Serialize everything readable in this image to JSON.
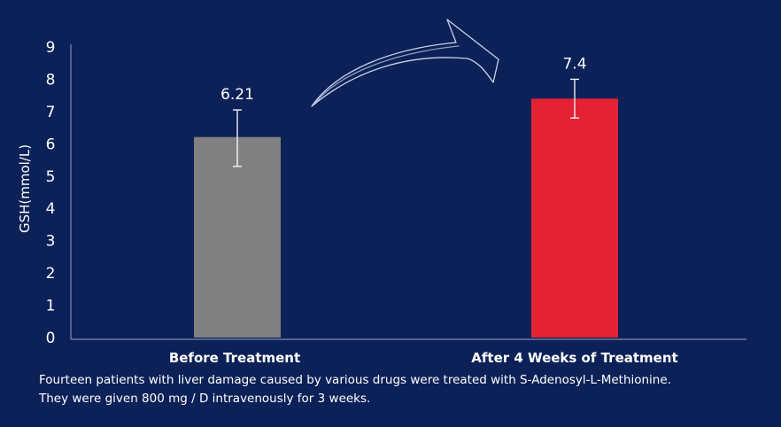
{
  "chart_data": {
    "type": "bar",
    "categories": [
      "Before Treatment",
      "After 4 Weeks of Treatment"
    ],
    "values": [
      6.21,
      7.4
    ],
    "data_labels": [
      "6.21",
      "7.4"
    ],
    "error_bars": [
      {
        "low": 5.3,
        "high": 7.05
      },
      {
        "low": 6.8,
        "high": 8.0
      }
    ],
    "colors": [
      "#808080",
      "#e32235"
    ],
    "ylabel": "GSH(mmol/L)",
    "xlabel": "",
    "ylim": [
      0,
      9
    ],
    "yticks": [
      "0",
      "1",
      "2",
      "3",
      "4",
      "5",
      "6",
      "7",
      "8",
      "9"
    ],
    "annotation": "arrow-from-before-to-after",
    "grid": false,
    "legend": "none"
  },
  "caption": {
    "line1": "Fourteen patients with liver damage caused by various drugs were treated with S-Adenosyl-L-Methionine.",
    "line2": "They were given 800 mg / D intravenously for 3 weeks."
  },
  "colors": {
    "background": "#0c2157",
    "axis": "#9aa3bf",
    "text": "#ffffff"
  }
}
